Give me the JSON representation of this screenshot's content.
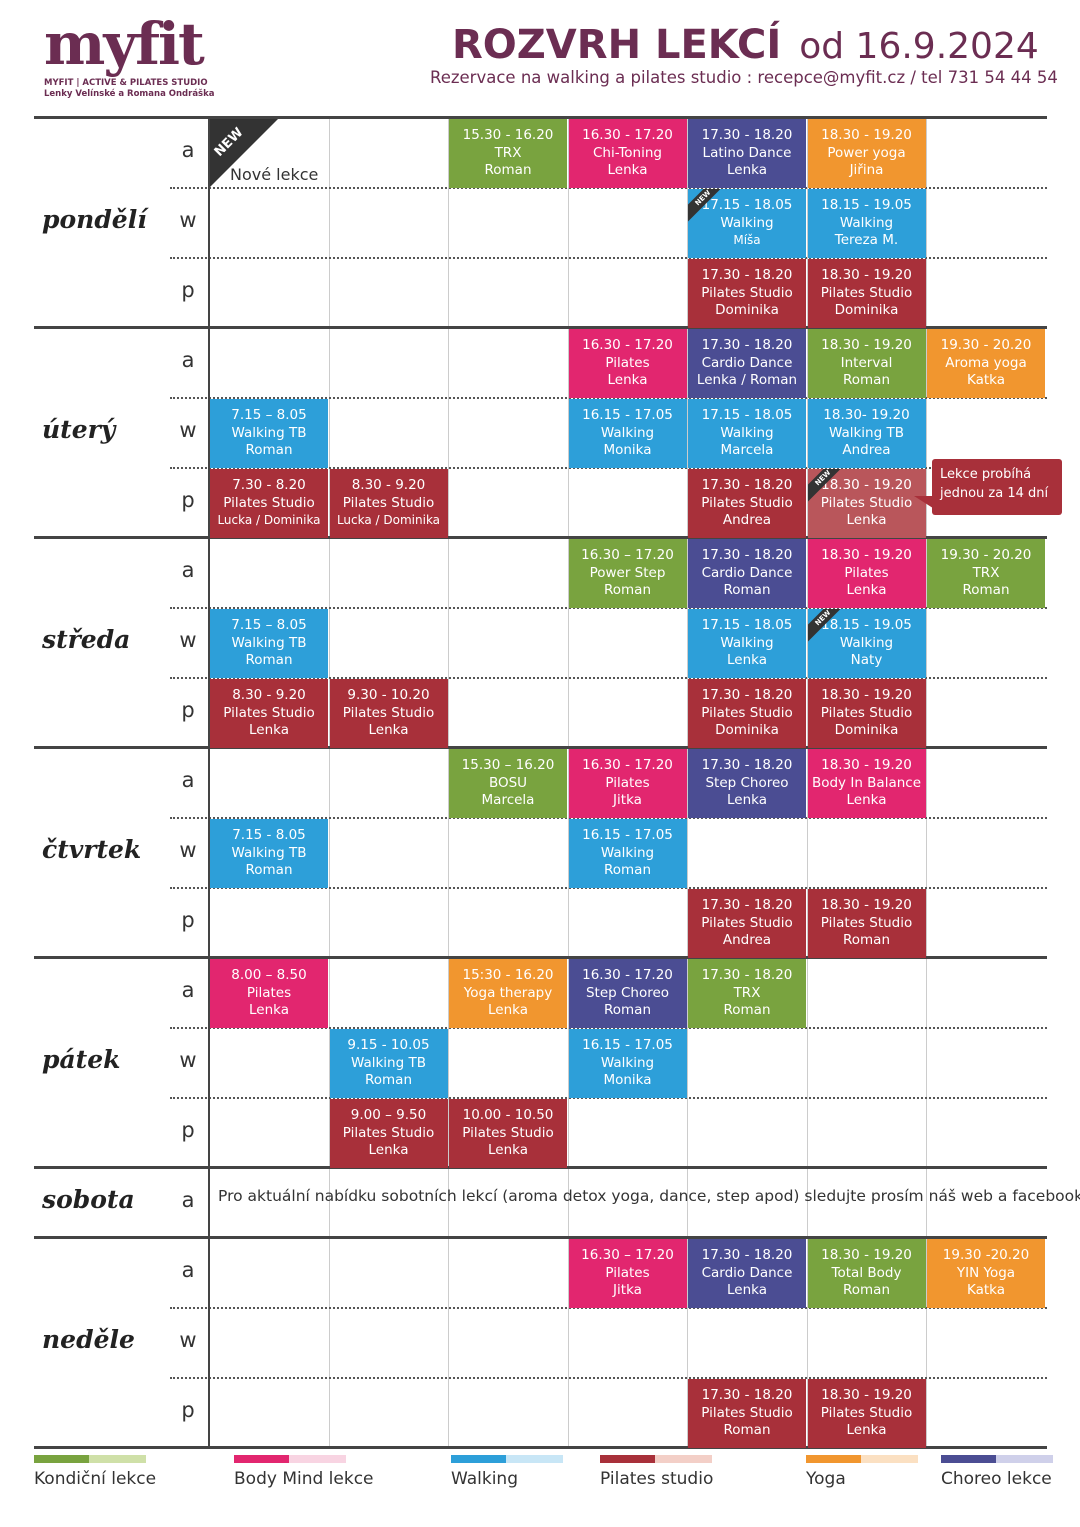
{
  "header": {
    "logo": "myfit",
    "logo_line1": "MYFIT | ACTIVE & PILATES STUDIO",
    "logo_line2": "Lenky Velínské a Romana Ondráška",
    "title": "ROZVRH LEKCÍ",
    "date": "od 16.9.2024",
    "subtitle": "Rezervace na walking a pilates studio : recepce@myfit.cz / tel 731 54 44 54"
  },
  "new_badge": "NEW",
  "new_label": "Nové lekce",
  "callout": "Lekce probíhá jednou za 14 dní",
  "row_labels": [
    "a",
    "w",
    "p"
  ],
  "days": [
    {
      "name": "pondělí",
      "rows": 3
    },
    {
      "name": "úterý",
      "rows": 3
    },
    {
      "name": "středa",
      "rows": 3
    },
    {
      "name": "čtvrtek",
      "rows": 3
    },
    {
      "name": "pátek",
      "rows": 3
    },
    {
      "name": "sobota",
      "rows": 1
    },
    {
      "name": "neděle",
      "rows": 3
    }
  ],
  "saturday_note": "Pro aktuální nabídku sobotních lekcí (aroma detox yoga, dance, step apod) sledujte prosím náš web a facebook",
  "colors": {
    "kondicni": "#79a33f",
    "bodymind": "#e2266f",
    "walking": "#2d9fd9",
    "pilates": "#a8303a",
    "yoga": "#f1962f",
    "choreo": "#4b4d93"
  },
  "lessons": [
    {
      "day": 0,
      "row": 0,
      "col": 2,
      "c": "g",
      "time": "15.30 - 16.20",
      "name": "TRX",
      "trainer": "Roman"
    },
    {
      "day": 0,
      "row": 0,
      "col": 3,
      "c": "m",
      "time": "16.30 - 17.20",
      "name": "Chi-Toning",
      "trainer": "Lenka"
    },
    {
      "day": 0,
      "row": 0,
      "col": 4,
      "c": "v",
      "time": "17.30 - 18.20",
      "name": "Latino Dance",
      "trainer": "Lenka"
    },
    {
      "day": 0,
      "row": 0,
      "col": 5,
      "c": "o",
      "time": "18.30 - 19.20",
      "name": "Power yoga",
      "trainer": "Jiřina"
    },
    {
      "day": 0,
      "row": 1,
      "col": 4,
      "c": "b",
      "time": "17.15 - 18.05",
      "name": "Walking",
      "trainer": "Míša",
      "new": true,
      "small": true
    },
    {
      "day": 0,
      "row": 1,
      "col": 5,
      "c": "b",
      "time": "18.15 - 19.05",
      "name": "Walking",
      "trainer": "Tereza M."
    },
    {
      "day": 0,
      "row": 2,
      "col": 4,
      "c": "r",
      "time": "17.30 - 18.20",
      "name": "Pilates Studio",
      "trainer": "Dominika"
    },
    {
      "day": 0,
      "row": 2,
      "col": 5,
      "c": "r",
      "time": "18.30 - 19.20",
      "name": "Pilates Studio",
      "trainer": "Dominika"
    },
    {
      "day": 1,
      "row": 0,
      "col": 3,
      "c": "m",
      "time": "16.30 - 17.20",
      "name": "Pilates",
      "trainer": "Lenka"
    },
    {
      "day": 1,
      "row": 0,
      "col": 4,
      "c": "v",
      "time": "17.30 - 18.20",
      "name": "Cardio Dance",
      "trainer": "Lenka / Roman"
    },
    {
      "day": 1,
      "row": 0,
      "col": 5,
      "c": "g",
      "time": "18.30 - 19.20",
      "name": "Interval",
      "trainer": "Roman"
    },
    {
      "day": 1,
      "row": 0,
      "col": 6,
      "c": "o",
      "time": "19.30 - 20.20",
      "name": "Aroma yoga",
      "trainer": "Katka"
    },
    {
      "day": 1,
      "row": 1,
      "col": 0,
      "c": "b",
      "time": "7.15 – 8.05",
      "name": "Walking TB",
      "trainer": "Roman"
    },
    {
      "day": 1,
      "row": 1,
      "col": 3,
      "c": "b",
      "time": "16.15 - 17.05",
      "name": "Walking",
      "trainer": "Monika"
    },
    {
      "day": 1,
      "row": 1,
      "col": 4,
      "c": "b",
      "time": "17.15 - 18.05",
      "name": "Walking",
      "trainer": "Marcela"
    },
    {
      "day": 1,
      "row": 1,
      "col": 5,
      "c": "b",
      "time": "18.30- 19.20",
      "name": "Walking TB",
      "trainer": "Andrea"
    },
    {
      "day": 1,
      "row": 2,
      "col": 0,
      "c": "r",
      "time": "7.30 - 8.20",
      "name": "Pilates Studio",
      "trainer": "Lucka / Dominika",
      "small": true
    },
    {
      "day": 1,
      "row": 2,
      "col": 1,
      "c": "r",
      "time": "8.30 - 9.20",
      "name": "Pilates Studio",
      "trainer": "Lucka / Dominika",
      "small": true
    },
    {
      "day": 1,
      "row": 2,
      "col": 4,
      "c": "r",
      "time": "17.30 - 18.20",
      "name": "Pilates Studio",
      "trainer": "Andrea"
    },
    {
      "day": 1,
      "row": 2,
      "col": 5,
      "c": "r",
      "time": "18.30 - 19.20",
      "name": "Pilates Studio",
      "trainer": "Lenka",
      "new": true,
      "faded": true
    },
    {
      "day": 2,
      "row": 0,
      "col": 3,
      "c": "g",
      "time": "16.30 – 17.20",
      "name": "Power Step",
      "trainer": "Roman"
    },
    {
      "day": 2,
      "row": 0,
      "col": 4,
      "c": "v",
      "time": "17.30 - 18.20",
      "name": "Cardio Dance",
      "trainer": "Roman"
    },
    {
      "day": 2,
      "row": 0,
      "col": 5,
      "c": "m",
      "time": "18.30 - 19.20",
      "name": "Pilates",
      "trainer": "Lenka"
    },
    {
      "day": 2,
      "row": 0,
      "col": 6,
      "c": "g",
      "time": "19.30 - 20.20",
      "name": "TRX",
      "trainer": "Roman"
    },
    {
      "day": 2,
      "row": 1,
      "col": 0,
      "c": "b",
      "time": "7.15 – 8.05",
      "name": "Walking TB",
      "trainer": "Roman"
    },
    {
      "day": 2,
      "row": 1,
      "col": 4,
      "c": "b",
      "time": "17.15 - 18.05",
      "name": "Walking",
      "trainer": "Lenka"
    },
    {
      "day": 2,
      "row": 1,
      "col": 5,
      "c": "b",
      "time": "18.15 - 19.05",
      "name": "Walking",
      "trainer": "Naty",
      "new": true
    },
    {
      "day": 2,
      "row": 2,
      "col": 0,
      "c": "r",
      "time": "8.30 - 9.20",
      "name": "Pilates Studio",
      "trainer": "Lenka"
    },
    {
      "day": 2,
      "row": 2,
      "col": 1,
      "c": "r",
      "time": "9.30 - 10.20",
      "name": "Pilates Studio",
      "trainer": "Lenka"
    },
    {
      "day": 2,
      "row": 2,
      "col": 4,
      "c": "r",
      "time": "17.30 - 18.20",
      "name": "Pilates Studio",
      "trainer": "Dominika"
    },
    {
      "day": 2,
      "row": 2,
      "col": 5,
      "c": "r",
      "time": "18.30 - 19.20",
      "name": "Pilates Studio",
      "trainer": "Dominika"
    },
    {
      "day": 3,
      "row": 0,
      "col": 2,
      "c": "g",
      "time": "15.30 – 16.20",
      "name": "BOSU",
      "trainer": "Marcela"
    },
    {
      "day": 3,
      "row": 0,
      "col": 3,
      "c": "m",
      "time": "16.30 - 17.20",
      "name": "Pilates",
      "trainer": "Jitka"
    },
    {
      "day": 3,
      "row": 0,
      "col": 4,
      "c": "v",
      "time": "17.30 - 18.20",
      "name": "Step Choreo",
      "trainer": "Lenka"
    },
    {
      "day": 3,
      "row": 0,
      "col": 5,
      "c": "m",
      "time": "18.30 - 19.20",
      "name": "Body In Balance",
      "trainer": "Lenka"
    },
    {
      "day": 3,
      "row": 1,
      "col": 0,
      "c": "b",
      "time": "7.15 - 8.05",
      "name": "Walking TB",
      "trainer": "Roman"
    },
    {
      "day": 3,
      "row": 1,
      "col": 3,
      "c": "b",
      "time": "16.15 - 17.05",
      "name": "Walking",
      "trainer": "Roman"
    },
    {
      "day": 3,
      "row": 2,
      "col": 4,
      "c": "r",
      "time": "17.30 - 18.20",
      "name": "Pilates Studio",
      "trainer": "Andrea"
    },
    {
      "day": 3,
      "row": 2,
      "col": 5,
      "c": "r",
      "time": "18.30 - 19.20",
      "name": "Pilates Studio",
      "trainer": "Roman"
    },
    {
      "day": 4,
      "row": 0,
      "col": 0,
      "c": "m",
      "time": "8.00 – 8.50",
      "name": "Pilates",
      "trainer": "Lenka"
    },
    {
      "day": 4,
      "row": 0,
      "col": 2,
      "c": "o",
      "time": "15:30 - 16.20",
      "name": "Yoga therapy",
      "trainer": "Lenka"
    },
    {
      "day": 4,
      "row": 0,
      "col": 3,
      "c": "v",
      "time": "16.30 - 17.20",
      "name": "Step Choreo",
      "trainer": "Roman"
    },
    {
      "day": 4,
      "row": 0,
      "col": 4,
      "c": "g",
      "time": "17.30 - 18.20",
      "name": "TRX",
      "trainer": "Roman"
    },
    {
      "day": 4,
      "row": 1,
      "col": 1,
      "c": "b",
      "time": "9.15 - 10.05",
      "name": "Walking TB",
      "trainer": "Roman"
    },
    {
      "day": 4,
      "row": 1,
      "col": 3,
      "c": "b",
      "time": "16.15 - 17.05",
      "name": "Walking",
      "trainer": "Monika"
    },
    {
      "day": 4,
      "row": 2,
      "col": 1,
      "c": "r",
      "time": "9.00 – 9.50",
      "name": "Pilates Studio",
      "trainer": "Lenka"
    },
    {
      "day": 4,
      "row": 2,
      "col": 2,
      "c": "r",
      "time": "10.00 - 10.50",
      "name": "Pilates Studio",
      "trainer": "Lenka"
    },
    {
      "day": 6,
      "row": 0,
      "col": 3,
      "c": "m",
      "time": "16.30 – 17.20",
      "name": "Pilates",
      "trainer": "Jitka"
    },
    {
      "day": 6,
      "row": 0,
      "col": 4,
      "c": "v",
      "time": "17.30 - 18.20",
      "name": "Cardio Dance",
      "trainer": "Lenka"
    },
    {
      "day": 6,
      "row": 0,
      "col": 5,
      "c": "g",
      "time": "18.30 - 19.20",
      "name": "Total Body",
      "trainer": "Roman"
    },
    {
      "day": 6,
      "row": 0,
      "col": 6,
      "c": "o",
      "time": "19.30 -20.20",
      "name": "YIN Yoga",
      "trainer": "Katka"
    },
    {
      "day": 6,
      "row": 2,
      "col": 4,
      "c": "r",
      "time": "17.30 - 18.20",
      "name": "Pilates Studio",
      "trainer": "Roman"
    },
    {
      "day": 6,
      "row": 2,
      "col": 5,
      "c": "r",
      "time": "18.30 - 19.20",
      "name": "Pilates Studio",
      "trainer": "Lenka"
    }
  ],
  "legend": [
    {
      "label": "Kondiční lekce",
      "dark": "#79a33f",
      "light": "#cfe0a8"
    },
    {
      "label": "Body Mind lekce",
      "dark": "#e2266f",
      "light": "#f8d4e2"
    },
    {
      "label": "Walking",
      "dark": "#2d9fd9",
      "light": "#c8e6f6"
    },
    {
      "label": "Pilates studio",
      "dark": "#a8303a",
      "light": "#f3cfc7"
    },
    {
      "label": "Yoga",
      "dark": "#f1962f",
      "light": "#fbe0c2"
    },
    {
      "label": "Choreo lekce",
      "dark": "#4b4d93",
      "light": "#cfd0ea"
    }
  ]
}
